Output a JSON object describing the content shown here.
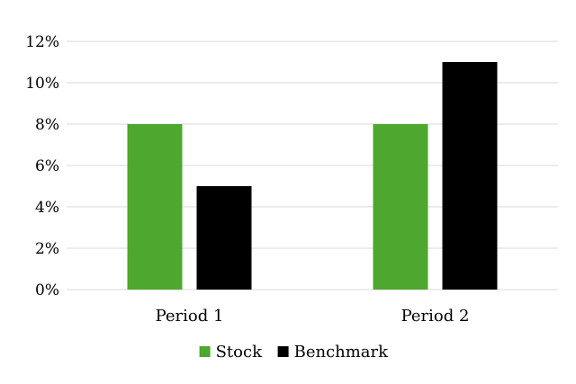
{
  "chart_data": {
    "type": "bar",
    "title": "",
    "xlabel": "",
    "ylabel": "",
    "categories": [
      "Period 1",
      "Period 2"
    ],
    "series": [
      {
        "name": "Stock",
        "values": [
          8,
          8
        ],
        "color": "#4ea72e"
      },
      {
        "name": "Benchmark",
        "values": [
          5,
          11
        ],
        "color": "#000000"
      }
    ],
    "ylim": [
      0,
      12
    ],
    "ytick_step": 2,
    "y_tick_labels": [
      "0%",
      "2%",
      "4%",
      "6%",
      "8%",
      "10%",
      "12%"
    ],
    "grid": true,
    "legend_position": "bottom"
  }
}
